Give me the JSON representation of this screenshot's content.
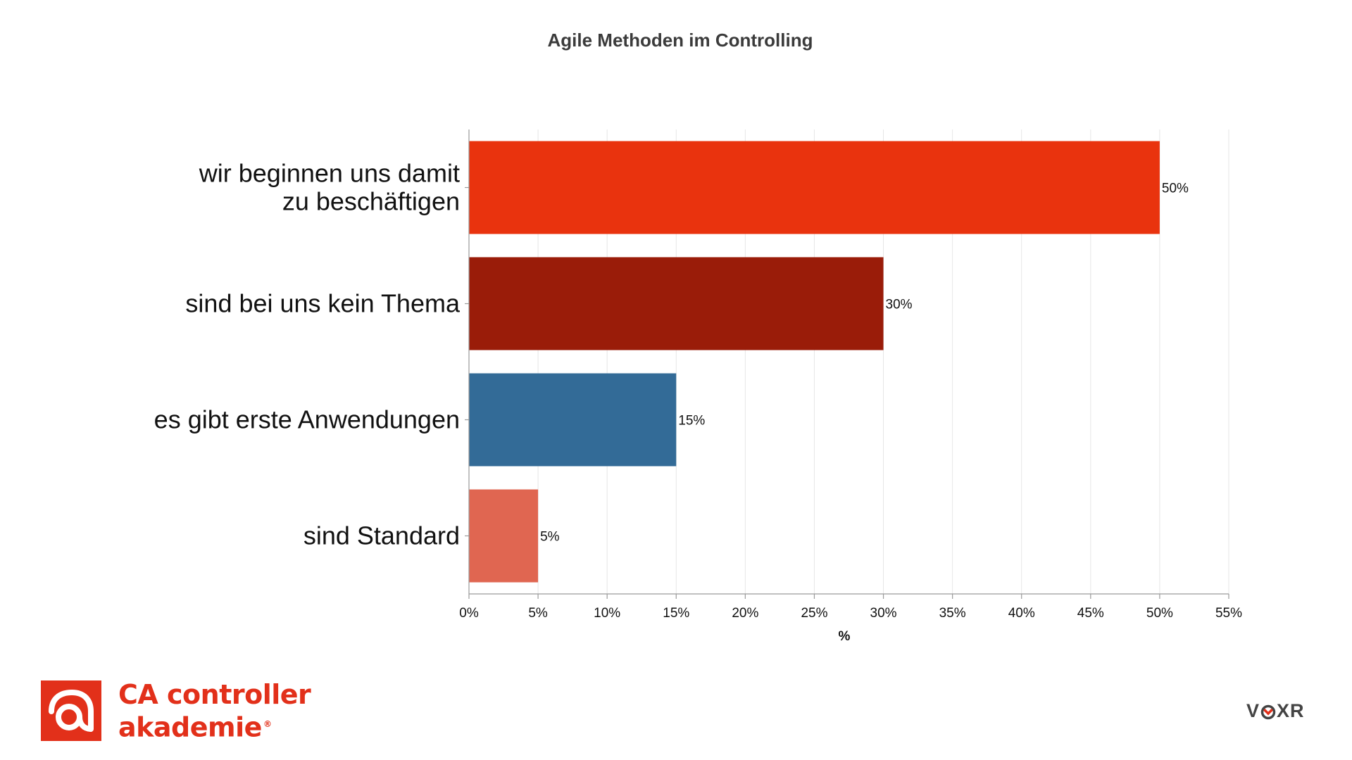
{
  "chart_data": {
    "type": "bar",
    "orientation": "horizontal",
    "title": "Agile Methoden im Controlling",
    "categories": [
      [
        "wir beginnen uns damit",
        "zu beschäftigen"
      ],
      [
        "sind bei uns kein Thema"
      ],
      [
        "es gibt erste Anwendungen"
      ],
      [
        "sind Standard"
      ]
    ],
    "values": [
      50,
      30,
      15,
      5
    ],
    "value_labels": [
      "50%",
      "30%",
      "15%",
      "5%"
    ],
    "bar_colors": [
      "#e9330e",
      "#9a1c09",
      "#336b97",
      "#e06651"
    ],
    "xlabel": "%",
    "ylabel": "",
    "xlim": [
      0,
      55
    ],
    "x_ticks": [
      0,
      5,
      10,
      15,
      20,
      25,
      30,
      35,
      40,
      45,
      50,
      55
    ],
    "x_tick_labels": [
      "0%",
      "5%",
      "10%",
      "15%",
      "20%",
      "25%",
      "30%",
      "35%",
      "40%",
      "45%",
      "50%",
      "55%"
    ],
    "grid": true,
    "legend": "none"
  },
  "branding": {
    "left_logo": {
      "line1": "CA controller",
      "line2": "akademie",
      "registered": "®",
      "color": "#e2301a",
      "icon": "ca-monogram-icon"
    },
    "right_logo": {
      "text_before": "V",
      "text_after": "XR",
      "color": "#444444",
      "accent": "#e2301a",
      "icon": "voxr-target-o-icon"
    }
  }
}
